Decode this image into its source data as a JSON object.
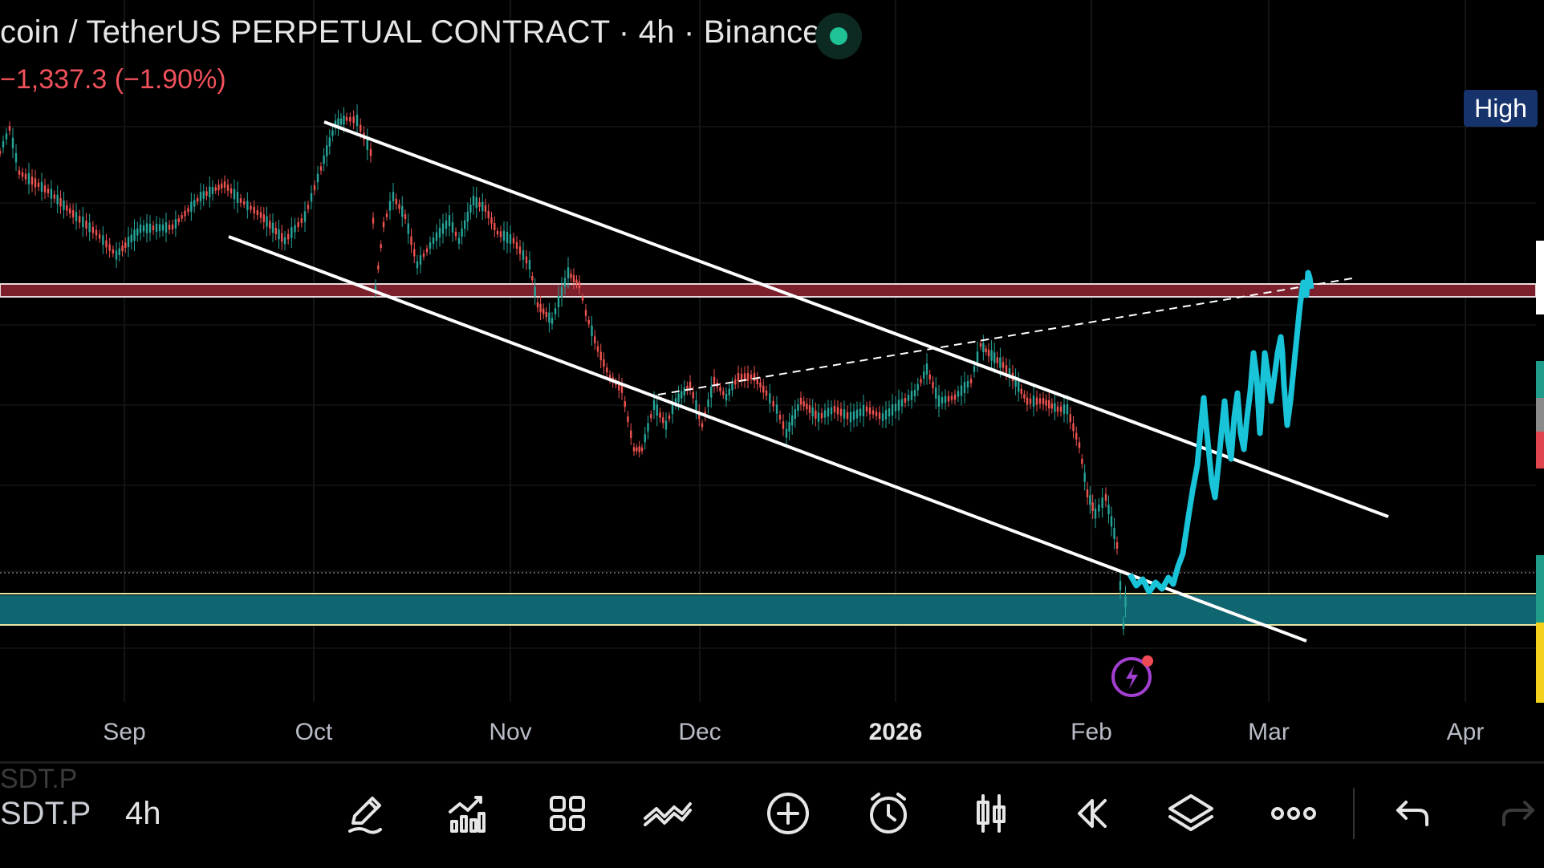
{
  "header": {
    "title": "coin / TetherUS PERPETUAL CONTRACT · 4h · Binance",
    "change": "−1,337.3 (−1.90%)"
  },
  "badge": {
    "label": "High"
  },
  "x_axis": {
    "labels": [
      "Sep",
      "Oct",
      "Nov",
      "Dec",
      "2026",
      "Feb",
      "Mar",
      "Apr"
    ]
  },
  "toolbar": {
    "ghost_symbol": "SDT.P",
    "symbol": "SDT.P",
    "interval": "4h",
    "tools": [
      "pencil-icon",
      "indicators-icon",
      "grid-icon",
      "compare-icon",
      "add-icon",
      "alarm-icon",
      "candles-icon",
      "replay-icon",
      "layers-icon",
      "more-icon",
      "undo-icon",
      "redo-icon"
    ]
  },
  "colors": {
    "background": "#000000",
    "up": "#26a69a",
    "down": "#ef5350",
    "projection": "#19c3d8",
    "resistance_zone": "#7a1f2b",
    "support_zone": "#0f6570"
  }
}
